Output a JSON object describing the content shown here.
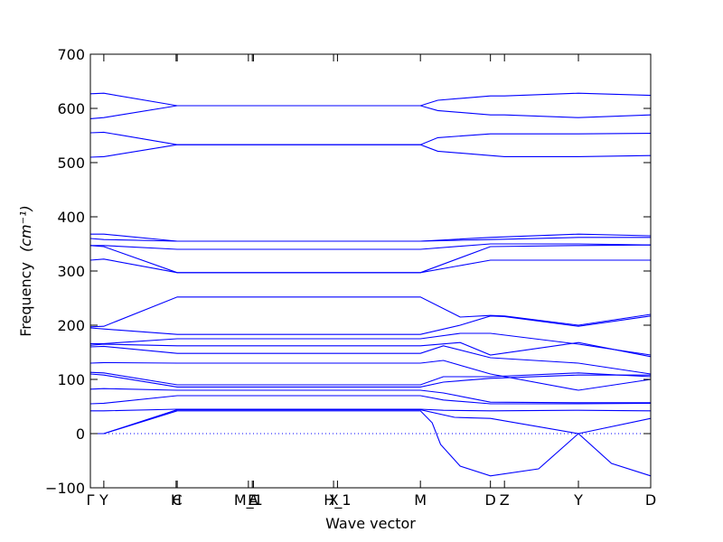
{
  "chart_data": {
    "type": "line",
    "title": "",
    "xlabel": "Wave vector",
    "ylabel": "Frequency",
    "ylabel_unit": "(cm⁻¹)",
    "ylim": [
      -100,
      700
    ],
    "yticks": [
      -100,
      0,
      100,
      200,
      300,
      400,
      500,
      600,
      700
    ],
    "xlim": [
      0,
      1
    ],
    "grid": false,
    "legend": "none",
    "zero_line": {
      "y": 0,
      "style": "dotted",
      "color": "#0000ff"
    },
    "high_symmetry_points": [
      {
        "label": "Γ",
        "x": 0.0
      },
      {
        "label": "Y",
        "x": 0.024
      },
      {
        "label": "H",
        "x": 0.153
      },
      {
        "label": "C",
        "x": 0.155
      },
      {
        "label": "M_1",
        "x": 0.282
      },
      {
        "label": "E",
        "x": 0.289
      },
      {
        "label": "A",
        "x": 0.291
      },
      {
        "label": "X",
        "x": 0.434
      },
      {
        "label": "H_1",
        "x": 0.441
      },
      {
        "label": "M",
        "x": 0.589
      },
      {
        "label": "D",
        "x": 0.714
      },
      {
        "label": "Z",
        "x": 0.739
      },
      {
        "label": "Y",
        "x": 0.871
      },
      {
        "label": "D",
        "x": 1.0
      }
    ],
    "series_color": "#0000ff",
    "series": [
      {
        "x": [
          0,
          0.024,
          0.155,
          0.589,
          0.62,
          0.714,
          0.739,
          0.871,
          1.0
        ],
        "y": [
          627,
          628,
          605,
          605,
          615,
          623,
          623,
          628,
          624
        ]
      },
      {
        "x": [
          0,
          0.024,
          0.155,
          0.589,
          0.62,
          0.714,
          0.739,
          0.871,
          1.0
        ],
        "y": [
          581,
          583,
          605,
          605,
          596,
          588,
          588,
          583,
          588
        ]
      },
      {
        "x": [
          0,
          0.024,
          0.155,
          0.589,
          0.62,
          0.714,
          0.739,
          0.871,
          1.0
        ],
        "y": [
          555,
          556,
          533,
          533,
          546,
          553,
          553,
          553,
          554
        ]
      },
      {
        "x": [
          0,
          0.024,
          0.155,
          0.589,
          0.62,
          0.714,
          0.739,
          0.871,
          1.0
        ],
        "y": [
          510,
          511,
          533,
          533,
          521,
          513,
          511,
          511,
          513
        ]
      },
      {
        "x": [
          0,
          0.024,
          0.155,
          0.589,
          0.714,
          0.871,
          1.0
        ],
        "y": [
          368,
          368,
          355,
          355,
          362,
          368,
          365
        ]
      },
      {
        "x": [
          0,
          0.024,
          0.155,
          0.589,
          0.714,
          0.871,
          1.0
        ],
        "y": [
          360,
          358,
          355,
          355,
          358,
          362,
          362
        ]
      },
      {
        "x": [
          0,
          0.024,
          0.155,
          0.589,
          0.714,
          0.871,
          1.0
        ],
        "y": [
          347,
          347,
          340,
          340,
          350,
          350,
          348
        ]
      },
      {
        "x": [
          0,
          0.024,
          0.155,
          0.589,
          0.714,
          0.871,
          1.0
        ],
        "y": [
          347,
          345,
          297,
          297,
          345,
          347,
          348
        ]
      },
      {
        "x": [
          0,
          0.024,
          0.155,
          0.589,
          0.714,
          0.871,
          1.0
        ],
        "y": [
          320,
          322,
          297,
          297,
          320,
          320,
          320
        ]
      },
      {
        "x": [
          0,
          0.024,
          0.155,
          0.589,
          0.66,
          0.714,
          0.739,
          0.871,
          1.0
        ],
        "y": [
          197,
          198,
          252,
          252,
          215,
          218,
          217,
          200,
          220
        ]
      },
      {
        "x": [
          0,
          0.024,
          0.155,
          0.589,
          0.66,
          0.714,
          0.739,
          0.871,
          1.0
        ],
        "y": [
          195,
          193,
          183,
          183,
          200,
          217,
          216,
          198,
          217
        ]
      },
      {
        "x": [
          0,
          0.024,
          0.155,
          0.589,
          0.66,
          0.714,
          0.871,
          1.0
        ],
        "y": [
          166,
          166,
          175,
          175,
          185,
          185,
          165,
          145
        ]
      },
      {
        "x": [
          0,
          0.024,
          0.155,
          0.589,
          0.66,
          0.714,
          0.871,
          1.0
        ],
        "y": [
          163,
          165,
          162,
          162,
          168,
          145,
          168,
          142
        ]
      },
      {
        "x": [
          0,
          0.024,
          0.155,
          0.589,
          0.63,
          0.714,
          0.871,
          1.0
        ],
        "y": [
          160,
          161,
          148,
          148,
          162,
          140,
          130,
          110
        ]
      },
      {
        "x": [
          0,
          0.024,
          0.155,
          0.589,
          0.63,
          0.714,
          0.871,
          1.0
        ],
        "y": [
          130,
          131,
          130,
          130,
          135,
          110,
          80,
          100
        ]
      },
      {
        "x": [
          0,
          0.024,
          0.155,
          0.589,
          0.63,
          0.714,
          0.871,
          1.0
        ],
        "y": [
          113,
          112,
          90,
          90,
          105,
          105,
          112,
          105
        ]
      },
      {
        "x": [
          0,
          0.024,
          0.155,
          0.589,
          0.63,
          0.714,
          0.871,
          1.0
        ],
        "y": [
          110,
          108,
          86,
          86,
          95,
          102,
          108,
          108
        ]
      },
      {
        "x": [
          0,
          0.024,
          0.155,
          0.589,
          0.63,
          0.714,
          0.871,
          1.0
        ],
        "y": [
          82,
          83,
          80,
          80,
          75,
          58,
          57,
          57
        ]
      },
      {
        "x": [
          0,
          0.024,
          0.155,
          0.589,
          0.63,
          0.714,
          0.871,
          1.0
        ],
        "y": [
          55,
          56,
          70,
          70,
          62,
          55,
          55,
          56
        ]
      },
      {
        "x": [
          0,
          0.024,
          0.155,
          0.589,
          0.63,
          0.714,
          0.871,
          1.0
        ],
        "y": [
          42,
          42,
          45,
          45,
          43,
          42,
          43,
          42
        ]
      },
      {
        "x": [
          0,
          0.024,
          0.155,
          0.589,
          0.65,
          0.714,
          0.871,
          1.0
        ],
        "y": [
          0,
          0,
          44,
          44,
          30,
          28,
          0,
          28
        ]
      },
      {
        "x": [
          0,
          0.024,
          0.155,
          0.589,
          0.61,
          0.625,
          0.66,
          0.714,
          0.8,
          0.871,
          0.93,
          1.0
        ],
        "y": [
          0,
          0,
          42,
          42,
          20,
          -20,
          -60,
          -78,
          -65,
          0,
          -55,
          -78
        ]
      }
    ]
  }
}
